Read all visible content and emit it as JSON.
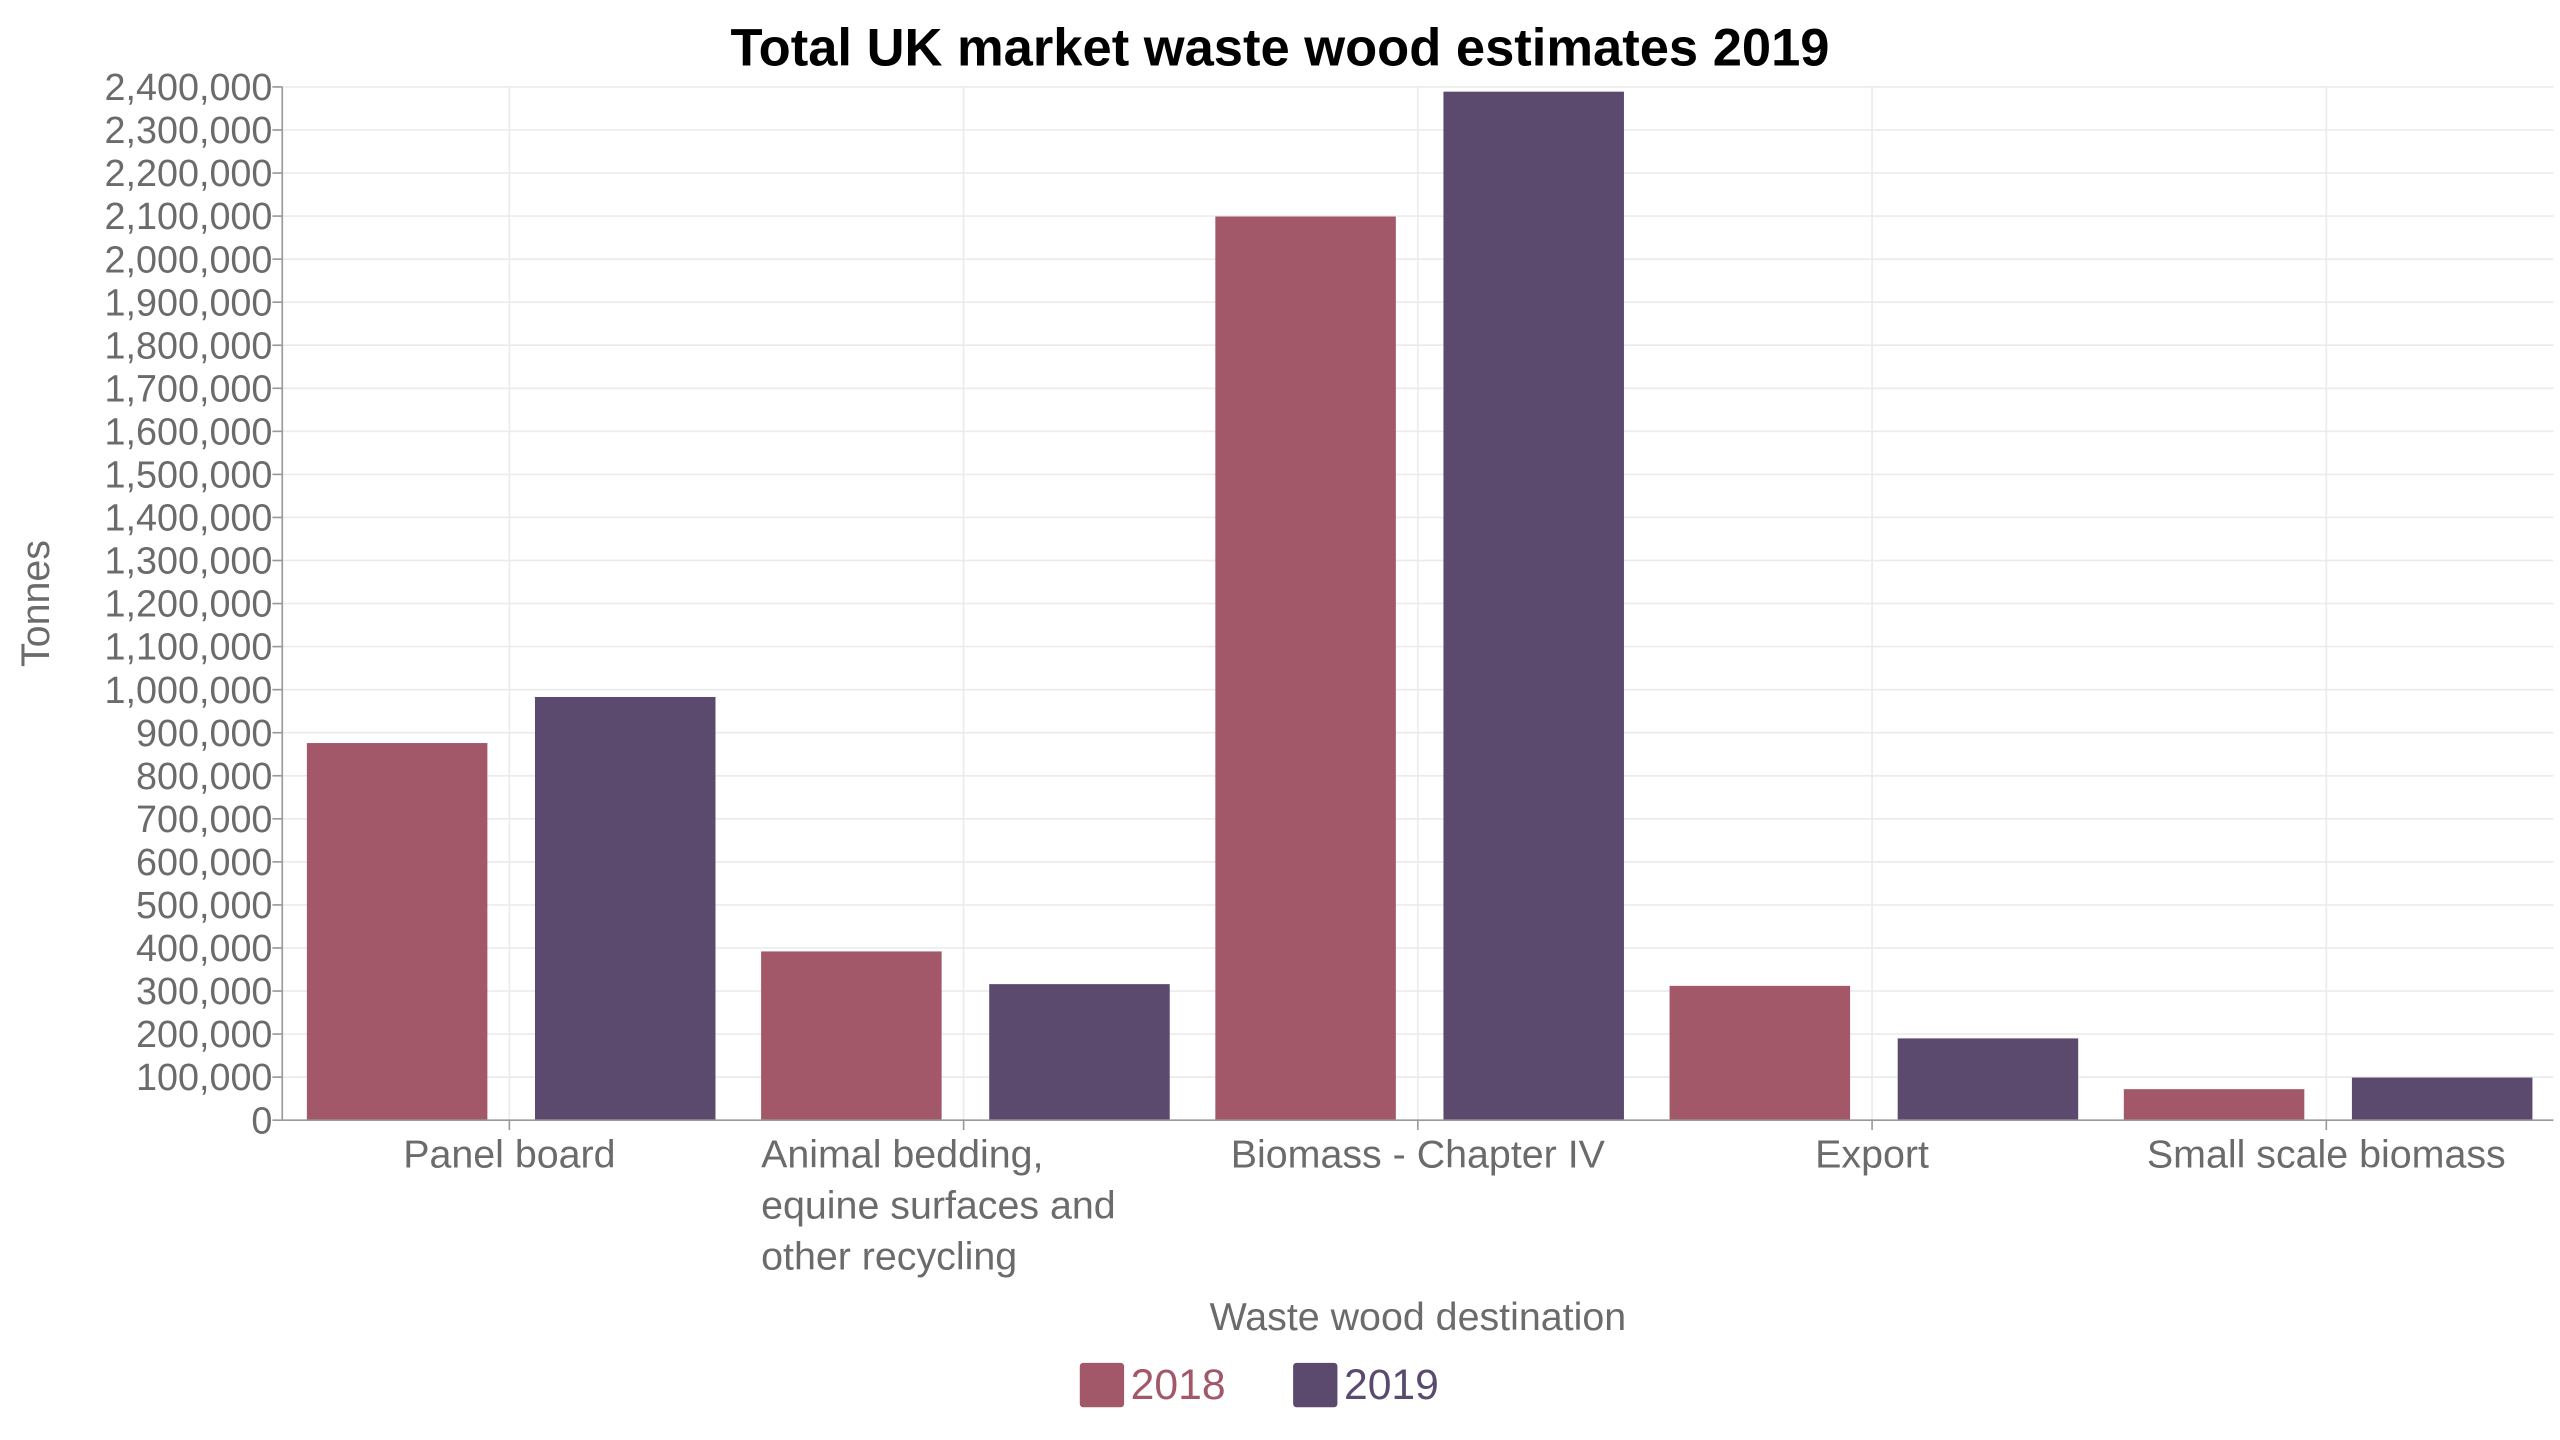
{
  "chart_data": {
    "type": "bar",
    "title": "Total UK market waste wood estimates 2019",
    "xlabel": "Waste wood destination",
    "ylabel": "Tonnes",
    "ylim": [
      0,
      2400000
    ],
    "ytick_step": 100000,
    "grid": true,
    "legend_position": "bottom",
    "categories": [
      "Panel board",
      "Animal bedding, equine surfaces and other recycling",
      "Biomass - Chapter IV",
      "Export",
      "Small scale biomass"
    ],
    "series": [
      {
        "name": "2018",
        "color": "#a3586a",
        "values": [
          876000,
          392000,
          2099000,
          312000,
          72000
        ]
      },
      {
        "name": "2019",
        "color": "#5c4a6e",
        "values": [
          983000,
          316000,
          2389000,
          190000,
          99000
        ]
      }
    ]
  }
}
